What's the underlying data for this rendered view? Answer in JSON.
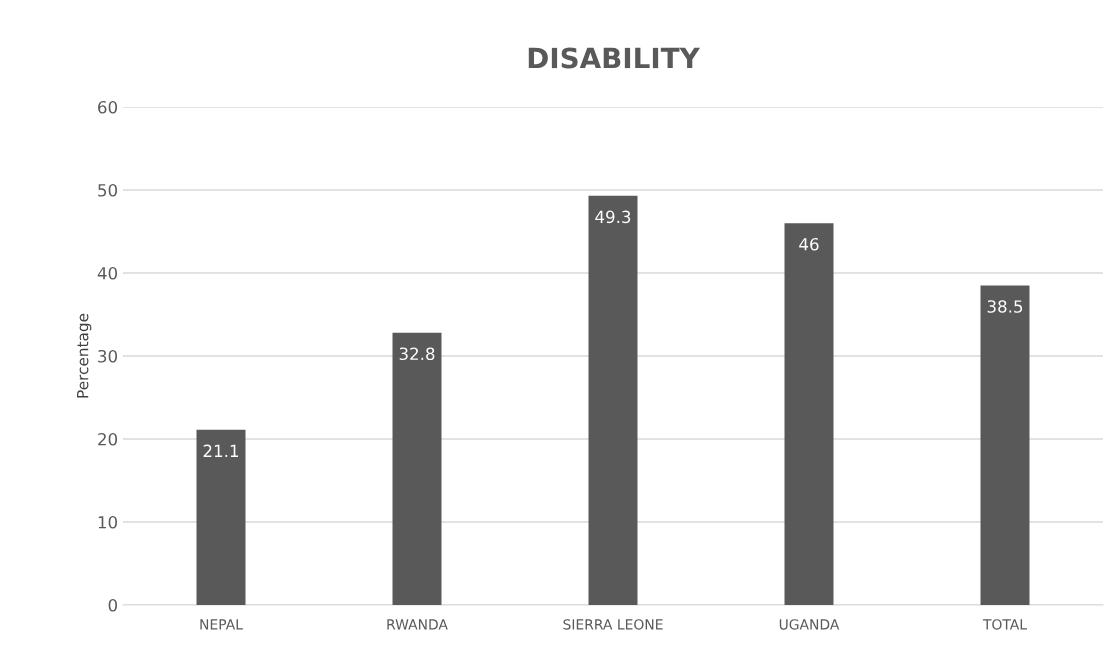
{
  "chart_data": {
    "type": "bar",
    "title": "DISABILITY",
    "ylabel": "Percentage",
    "categories": [
      "NEPAL",
      "RWANDA",
      "SIERRA LEONE",
      "UGANDA",
      "TOTAL"
    ],
    "values": [
      21.1,
      32.8,
      49.3,
      46,
      38.5
    ],
    "color": "#595959",
    "ylim": [
      0,
      60
    ],
    "yticks": [
      0,
      10,
      20,
      30,
      40,
      50,
      60
    ],
    "grid": "y",
    "data_labels": true,
    "legend": false
  }
}
